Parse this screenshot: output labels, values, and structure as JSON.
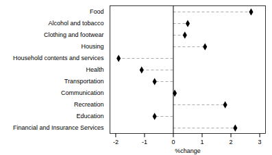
{
  "chart_data": {
    "type": "lollipop",
    "orientation": "horizontal",
    "categories": [
      "Food",
      "Alcohol and tobacco",
      "Clothing and footwear",
      "Housing",
      "Household contents and services",
      "Health",
      "Transportation",
      "Communication",
      "Recreation",
      "Education",
      "Financial and Insurance Services"
    ],
    "values": [
      2.7,
      0.5,
      0.4,
      1.1,
      -1.9,
      -1.1,
      -0.65,
      0.05,
      1.8,
      -0.65,
      2.15
    ],
    "xlim": [
      -2.2,
      3.2
    ],
    "xticks": [
      -2,
      -1,
      0,
      1,
      2,
      3
    ],
    "xlabel": "%change",
    "color": "#000000",
    "marker": "diamond",
    "line_style": "dashed",
    "grid": false
  }
}
